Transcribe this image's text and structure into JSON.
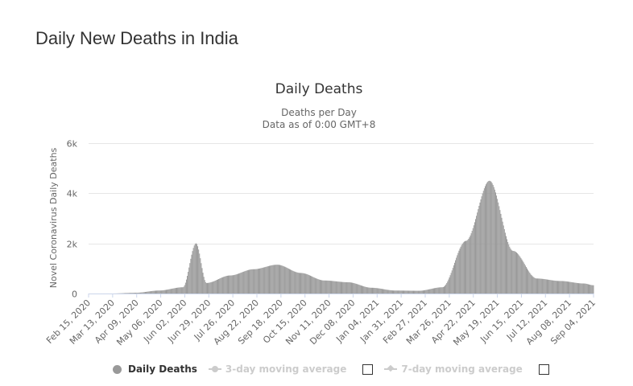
{
  "page": {
    "heading": "Daily New Deaths in India"
  },
  "chart_data": {
    "type": "bar",
    "title": "Daily Deaths",
    "subtitle_line1": "Deaths per Day",
    "subtitle_line2": "Data as of 0:00 GMT+8",
    "xlabel": "",
    "ylabel": "Novel Coronavirus Daily Deaths",
    "ylim": [
      0,
      6000
    ],
    "grid": true,
    "bar_color": "#999999",
    "y_ticks": [
      {
        "value": 0,
        "label": "0"
      },
      {
        "value": 2000,
        "label": "2k"
      },
      {
        "value": 4000,
        "label": "4k"
      },
      {
        "value": 6000,
        "label": "6k"
      }
    ],
    "x_tick_labels": [
      "Feb 15, 2020",
      "Mar 13, 2020",
      "Apr 09, 2020",
      "May 06, 2020",
      "Jun 02, 2020",
      "Jun 29, 2020",
      "Jul 26, 2020",
      "Aug 22, 2020",
      "Sep 18, 2020",
      "Oct 15, 2020",
      "Nov 11, 2020",
      "Dec 08, 2020",
      "Jan 04, 2021",
      "Jan 31, 2021",
      "Feb 27, 2021",
      "Mar 26, 2021",
      "Apr 22, 2021",
      "May 19, 2021",
      "Jun 15, 2021",
      "Jul 12, 2021",
      "Aug 08, 2021",
      "Sep 04, 2021"
    ],
    "series": [
      {
        "name": "Daily Deaths",
        "points": [
          {
            "date": "2020-02-15",
            "value": 0
          },
          {
            "date": "2020-03-13",
            "value": 1
          },
          {
            "date": "2020-04-09",
            "value": 30
          },
          {
            "date": "2020-05-06",
            "value": 120
          },
          {
            "date": "2020-06-02",
            "value": 250
          },
          {
            "date": "2020-06-17",
            "value": 2003
          },
          {
            "date": "2020-06-29",
            "value": 420
          },
          {
            "date": "2020-07-26",
            "value": 720
          },
          {
            "date": "2020-08-22",
            "value": 970
          },
          {
            "date": "2020-09-18",
            "value": 1150
          },
          {
            "date": "2020-10-15",
            "value": 820
          },
          {
            "date": "2020-11-11",
            "value": 520
          },
          {
            "date": "2020-12-08",
            "value": 450
          },
          {
            "date": "2021-01-04",
            "value": 230
          },
          {
            "date": "2021-01-31",
            "value": 120
          },
          {
            "date": "2021-02-27",
            "value": 110
          },
          {
            "date": "2021-03-26",
            "value": 250
          },
          {
            "date": "2021-04-22",
            "value": 2100
          },
          {
            "date": "2021-05-19",
            "value": 4500
          },
          {
            "date": "2021-06-15",
            "value": 1700
          },
          {
            "date": "2021-07-12",
            "value": 600
          },
          {
            "date": "2021-08-08",
            "value": 500
          },
          {
            "date": "2021-09-04",
            "value": 400
          },
          {
            "date": "2021-09-15",
            "value": 330
          }
        ]
      }
    ]
  },
  "legend": {
    "items": [
      {
        "label": "Daily Deaths",
        "active": true
      },
      {
        "label": "3-day moving average",
        "active": false
      },
      {
        "label": "7-day moving average",
        "active": false
      }
    ]
  }
}
